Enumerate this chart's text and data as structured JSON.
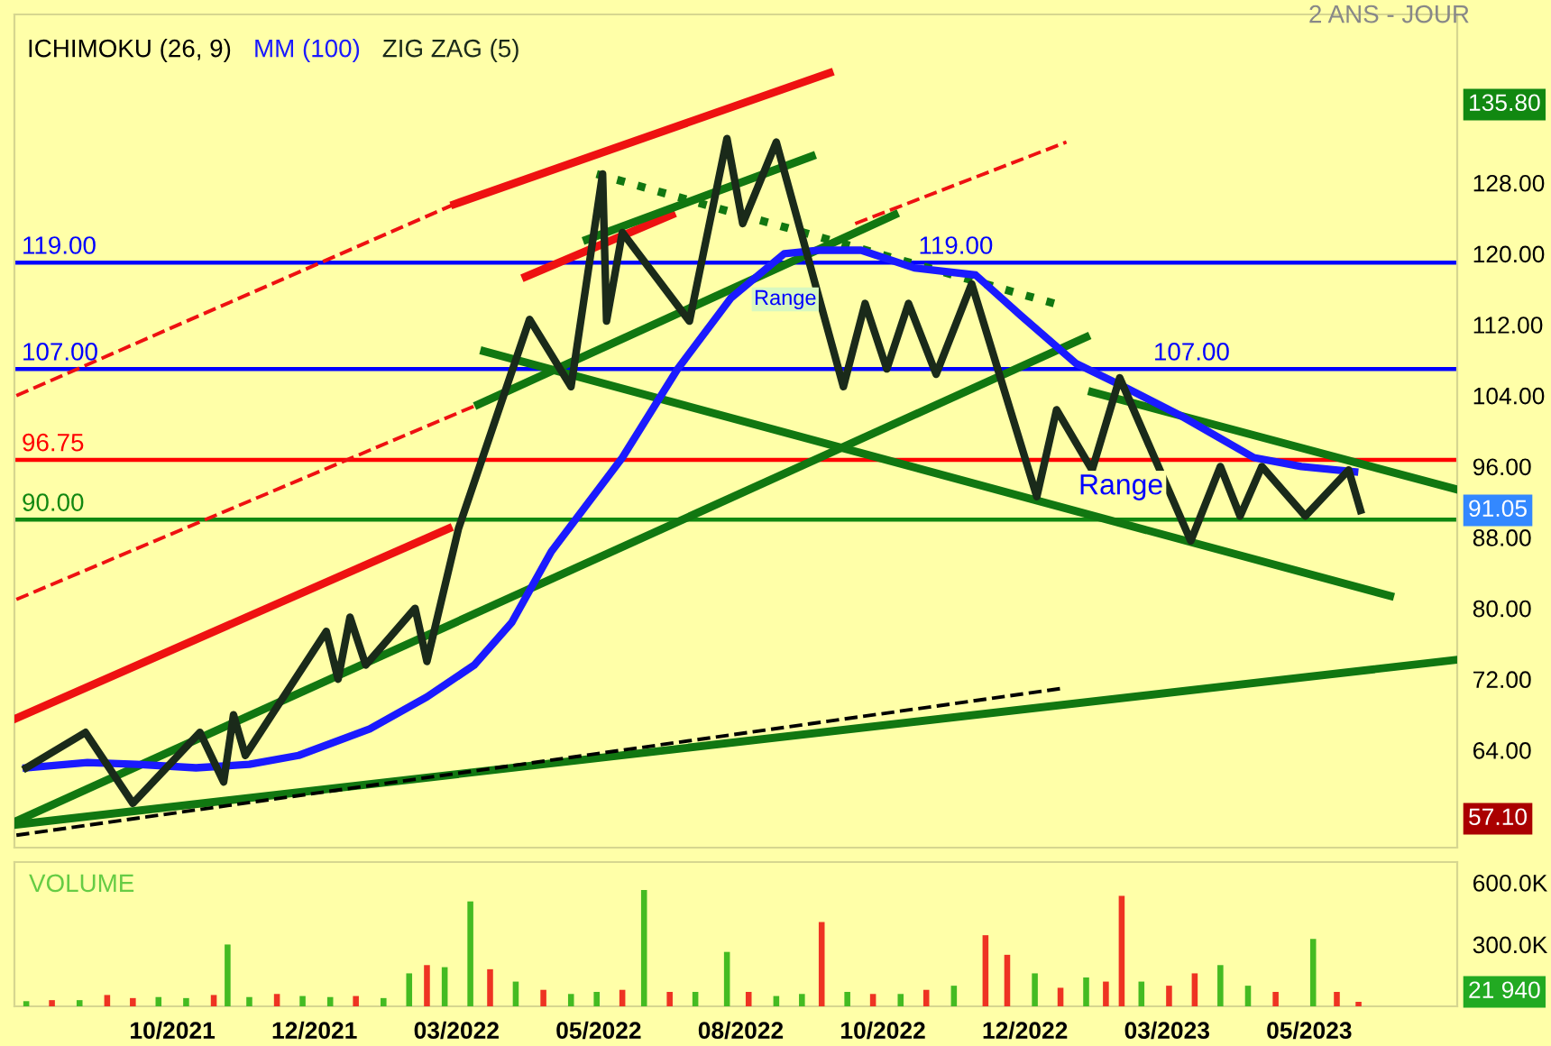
{
  "chart_data": [
    {
      "type": "line",
      "legend": "top left",
      "tick_labels": "y",
      "xlim": [
        "2021-08-01",
        "2023-08-02"
      ],
      "ylim": [
        53,
        147
      ],
      "yticks": [
        {
          "value": 64,
          "label": "64.00"
        },
        {
          "value": 72,
          "label": "72.00"
        },
        {
          "value": 80,
          "label": "80.00"
        },
        {
          "value": 88,
          "label": "88.00"
        },
        {
          "value": 96,
          "label": "96.00"
        },
        {
          "value": 104,
          "label": "104.00"
        },
        {
          "value": 112,
          "label": "112.00"
        },
        {
          "value": 120,
          "label": "120.00"
        },
        {
          "value": 128,
          "label": "128.00"
        }
      ],
      "ref_lines": [
        {
          "axis": "y",
          "value": 119,
          "label": "119.00",
          "color": "#0000ff"
        },
        {
          "axis": "y",
          "value": 107,
          "label": "107.00",
          "color": "#0000ff"
        },
        {
          "axis": "y",
          "value": 96.75,
          "label": "96.75",
          "color": "#ff0000"
        },
        {
          "axis": "y",
          "value": 90,
          "label": "90.00",
          "color": "#118811"
        }
      ],
      "series": [
        {
          "color": "#ee1111",
          "line_style": "dashed",
          "x": [
            "2021-08-02",
            "2022-03-12"
          ],
          "values": [
            104,
            125.6
          ]
        },
        {
          "color": "#ee1111",
          "line_style": "dashed",
          "x": [
            "2022-10-01",
            "2023-01-16"
          ],
          "values": [
            123.4,
            132.6
          ]
        },
        {
          "color": "#ee1111",
          "line_style": "dashed",
          "x": [
            "2021-08-02",
            "2022-03-24"
          ],
          "values": [
            81,
            103
          ]
        },
        {
          "color": "#ee1111",
          "x": [
            "2022-03-12",
            "2022-09-18"
          ],
          "values": [
            125.6,
            140.4
          ]
        },
        {
          "color": "#ee1111",
          "x": [
            "2022-04-17",
            "2022-06-30"
          ],
          "values": [
            117.4,
            124.4
          ]
        },
        {
          "color": "#ee1111",
          "x": [
            "2021-08-02",
            "2022-03-09"
          ],
          "values": [
            67.6,
            89.0
          ]
        },
        {
          "color": "#117711",
          "x": [
            "2021-08-02",
            "2023-08-02"
          ],
          "values": [
            55.6,
            74.2
          ]
        },
        {
          "color": "#117711",
          "x": [
            "2021-08-02",
            "2023-01-26"
          ],
          "values": [
            56.0,
            110.6
          ]
        },
        {
          "color": "#117711",
          "x": [
            "2022-03-24",
            "2022-10-21"
          ],
          "values": [
            103,
            124.4
          ]
        },
        {
          "color": "#117711",
          "x": [
            "2022-05-18",
            "2022-09-09"
          ],
          "values": [
            121.6,
            131
          ]
        },
        {
          "color": "#117711",
          "x": [
            "2022-03-27",
            "2023-06-29"
          ],
          "values": [
            109,
            81.4
          ]
        },
        {
          "color": "#117711",
          "x": [
            "2023-01-29",
            "2023-08-02"
          ],
          "values": [
            104.4,
            93.4
          ]
        },
        {
          "color": "#117711",
          "line_style": "dotted",
          "x": [
            "2022-05-23",
            "2023-01-16"
          ],
          "values": [
            129,
            114
          ]
        },
        {
          "color": "#000000",
          "line_style": "dashed",
          "x": [
            "2021-08-02",
            "2023-01-15"
          ],
          "values": [
            54.4,
            71
          ]
        },
        {
          "name": "MM (100)",
          "color": "#1a1aff",
          "x": [
            "2021-08-07",
            "2021-09-07",
            "2021-10-02",
            "2021-11-01",
            "2021-11-28",
            "2021-12-23",
            "2022-01-28",
            "2022-02-26",
            "2022-03-22",
            "2022-04-10",
            "2022-04-30",
            "2022-06-05",
            "2022-07-03",
            "2022-07-30",
            "2022-08-26",
            "2022-09-13",
            "2022-10-04",
            "2022-10-31",
            "2022-12-01",
            "2022-12-24",
            "2023-01-21",
            "2023-02-14",
            "2023-03-16",
            "2023-04-21",
            "2023-05-15",
            "2023-06-11"
          ],
          "values": [
            62,
            62.6,
            62.4,
            62,
            62.4,
            63.4,
            66.4,
            70,
            73.6,
            78.4,
            86.4,
            97,
            107,
            115,
            120,
            120.4,
            120.4,
            118.4,
            117.6,
            113,
            107.6,
            105,
            101.6,
            97,
            96,
            95.4
          ]
        },
        {
          "name": "ZIG ZAG (5)",
          "color": "#1a2a1a",
          "x": [
            "2021-08-07",
            "2021-09-06",
            "2021-09-30",
            "2021-11-03",
            "2021-11-15",
            "2021-11-20",
            "2021-11-26",
            "2022-01-06",
            "2022-01-12",
            "2022-01-18",
            "2022-01-26",
            "2022-02-20",
            "2022-02-26",
            "2022-03-14",
            "2022-04-19",
            "2022-05-10",
            "2022-05-26",
            "2022-05-28",
            "2022-06-05",
            "2022-07-09",
            "2022-07-28",
            "2022-08-05",
            "2022-08-22",
            "2022-09-25",
            "2022-10-06",
            "2022-10-17",
            "2022-10-28",
            "2022-11-11",
            "2022-11-29",
            "2023-01-01",
            "2023-01-11",
            "2023-01-29",
            "2023-02-12",
            "2023-03-20",
            "2023-04-04",
            "2023-04-14",
            "2023-04-25",
            "2023-05-17",
            "2023-06-08",
            "2023-06-14"
          ],
          "values": [
            62.0,
            66.0,
            58.0,
            66.0,
            60.4,
            68.0,
            63.4,
            77.4,
            72.0,
            79.0,
            73.6,
            80.0,
            74.0,
            89.0,
            112.6,
            105.0,
            129.0,
            112.4,
            122.4,
            112.4,
            133.0,
            123.4,
            132.6,
            105.0,
            114.4,
            107.0,
            114.4,
            106.4,
            116.6,
            92.6,
            102.4,
            95.6,
            106.0,
            87.6,
            96.0,
            90.4,
            96.0,
            90.4,
            95.6,
            91.05
          ]
        }
      ],
      "annotations": [
        "2 ANS - JOUR",
        "ICHIMOKU (26, 9)",
        "Range",
        "Range",
        "135.80",
        "57.10",
        "91.05",
        {
          "text": "119.00",
          "x": "2022-11-02",
          "y": 119
        },
        {
          "text": "107.00",
          "x": "2023-03-01",
          "y": 107
        }
      ]
    },
    {
      "type": "bar",
      "xlim": [
        "2021-08-01",
        "2023-08-02"
      ],
      "ylim": [
        0,
        700
      ],
      "yticks": [
        {
          "value": 300,
          "label": "300.0K"
        },
        {
          "value": 600,
          "label": "600.0K"
        }
      ],
      "xticks": [
        {
          "value": "2021-10-20",
          "label": "10/2021"
        },
        {
          "value": "2021-12-31",
          "label": "12/2021"
        },
        {
          "value": "2022-03-13",
          "label": "03/2022"
        },
        {
          "value": "2022-05-24",
          "label": "05/2022"
        },
        {
          "value": "2022-08-04",
          "label": "08/2022"
        },
        {
          "value": "2022-10-15",
          "label": "10/2022"
        },
        {
          "value": "2022-12-26",
          "label": "12/2022"
        },
        {
          "value": "2023-03-08",
          "label": "03/2023"
        },
        {
          "value": "2023-05-19",
          "label": "05/2023"
        }
      ],
      "x": [
        "2021-08-07",
        "2021-08-20",
        "2021-09-03",
        "2021-09-17",
        "2021-09-30",
        "2021-10-13",
        "2021-10-27",
        "2021-11-10",
        "2021-11-17",
        "2021-11-28",
        "2021-12-12",
        "2021-12-25",
        "2022-01-08",
        "2022-01-21",
        "2022-02-04",
        "2022-02-17",
        "2022-02-26",
        "2022-03-07",
        "2022-03-20",
        "2022-03-30",
        "2022-04-12",
        "2022-04-26",
        "2022-05-10",
        "2022-05-23",
        "2022-06-05",
        "2022-06-16",
        "2022-06-29",
        "2022-07-12",
        "2022-07-28",
        "2022-08-08",
        "2022-08-22",
        "2022-09-04",
        "2022-09-14",
        "2022-09-27",
        "2022-10-10",
        "2022-10-24",
        "2022-11-06",
        "2022-11-20",
        "2022-12-06",
        "2022-12-17",
        "2022-12-31",
        "2023-01-13",
        "2023-01-26",
        "2023-02-05",
        "2023-02-13",
        "2023-02-23",
        "2023-03-09",
        "2023-03-22",
        "2023-04-04",
        "2023-04-18",
        "2023-05-02",
        "2023-05-21",
        "2023-06-02",
        "2023-06-13"
      ],
      "values": [
        25,
        30,
        30,
        55,
        40,
        45,
        40,
        55,
        300,
        45,
        60,
        50,
        45,
        50,
        40,
        160,
        200,
        190,
        509,
        180,
        120,
        80,
        60,
        70,
        80,
        564,
        70,
        70,
        264,
        70,
        50,
        60,
        409,
        70,
        60,
        60,
        80,
        100,
        345,
        250,
        160,
        90,
        140,
        120,
        536,
        120,
        100,
        160,
        200,
        100,
        70,
        327,
        70,
        22
      ],
      "colors": [
        "#44bb22",
        "#ee3322",
        "#44bb22",
        "#ee3322",
        "#ee3322",
        "#44bb22",
        "#44bb22",
        "#ee3322",
        "#44bb22",
        "#44bb22",
        "#ee3322",
        "#44bb22",
        "#44bb22",
        "#ee3322",
        "#44bb22",
        "#44bb22",
        "#ee3322",
        "#44bb22",
        "#44bb22",
        "#ee3322",
        "#44bb22",
        "#ee3322",
        "#44bb22",
        "#44bb22",
        "#ee3322",
        "#44bb22",
        "#ee3322",
        "#44bb22",
        "#44bb22",
        "#ee3322",
        "#44bb22",
        "#44bb22",
        "#ee3322",
        "#44bb22",
        "#ee3322",
        "#44bb22",
        "#ee3322",
        "#44bb22",
        "#ee3322",
        "#ee3322",
        "#44bb22",
        "#ee3322",
        "#44bb22",
        "#ee3322",
        "#ee3322",
        "#44bb22",
        "#ee3322",
        "#ee3322",
        "#44bb22",
        "#44bb22",
        "#ee3322",
        "#44bb22",
        "#ee3322",
        "#ee3322"
      ],
      "annotations": [
        "VOLUME",
        "21 940"
      ]
    }
  ]
}
